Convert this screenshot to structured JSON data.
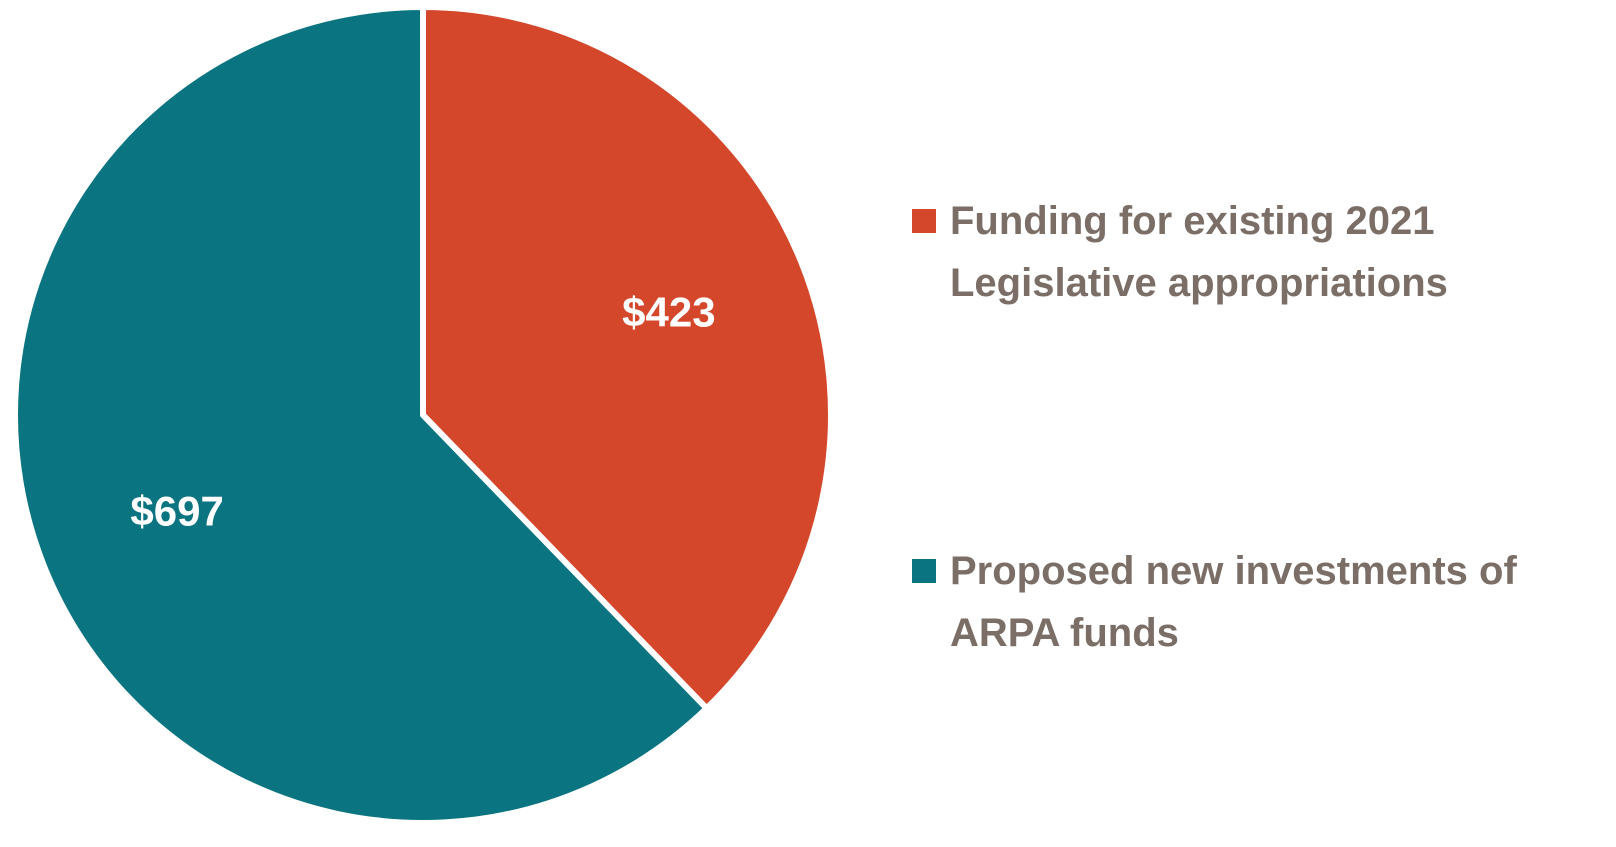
{
  "chart_data": {
    "type": "pie",
    "series": [
      {
        "name": "Funding for existing 2021 Legislative appropriations",
        "color": "#d4472a",
        "values": [
          423
        ],
        "value_labels": [
          "$423"
        ]
      },
      {
        "name": "Proposed new investments of ARPA funds",
        "color": "#0a7480",
        "values": [
          697
        ],
        "value_labels": [
          "$697"
        ]
      }
    ],
    "legend": "right"
  }
}
